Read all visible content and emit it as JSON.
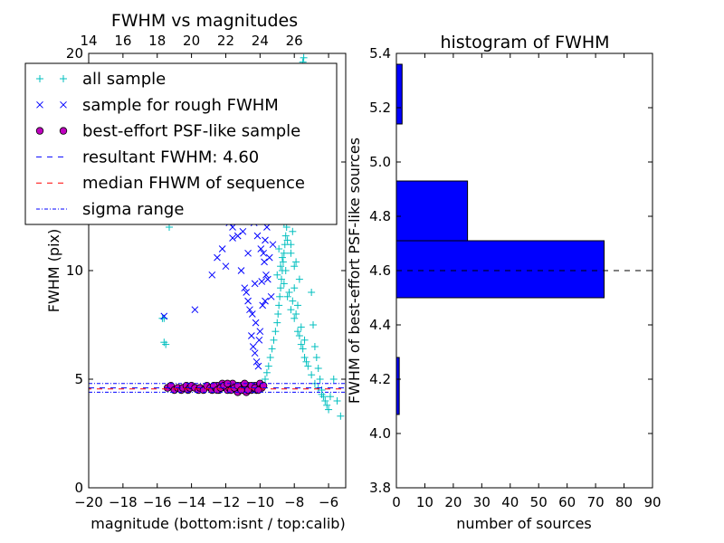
{
  "chart_data": [
    {
      "type": "scatter",
      "title": "FWHM vs magnitudes",
      "xlabel": "magnitude (bottom:isnt / top:calib)",
      "ylabel": "FWHM (pix)",
      "xlim": [
        -20,
        -5
      ],
      "ylim": [
        0,
        20
      ],
      "x_ticks": [
        -20,
        -18,
        -16,
        -14,
        -12,
        -10,
        -8,
        -6
      ],
      "x_tick_labels": [
        "−20",
        "−18",
        "−16",
        "−14",
        "−12",
        "−10",
        "−8",
        "−6"
      ],
      "y_ticks": [
        0,
        5,
        10,
        15,
        20
      ],
      "y_tick_labels": [
        "0",
        "5",
        "10",
        "15",
        "20"
      ],
      "top_axis": {
        "ticks": [
          14,
          16,
          18,
          20,
          22,
          24,
          26
        ],
        "tick_labels": [
          "14",
          "16",
          "18",
          "20",
          "22",
          "24",
          "26"
        ],
        "offset": 34
      },
      "legend": {
        "placement": "top-left",
        "entries": [
          {
            "label": "all sample",
            "marker": "plus",
            "color": "#00bfbf"
          },
          {
            "label": "sample for rough FWHM",
            "marker": "x",
            "color": "#0000ff"
          },
          {
            "label": "best-effort PSF-like sample",
            "marker": "circle",
            "color": "#bf00bf"
          },
          {
            "label": "resultant FWHM: 4.60",
            "marker": "dashed",
            "color": "#0000ff"
          },
          {
            "label": "median FHWM of sequence",
            "marker": "dashed",
            "color": "#ff0000"
          },
          {
            "label": "sigma range",
            "marker": "dashdot",
            "color": "#0000ff"
          }
        ]
      },
      "lines": {
        "resultant_fwhm": 4.6,
        "median_fwhm": 4.55,
        "sigma_range": [
          4.4,
          4.8
        ]
      },
      "series": [
        {
          "name": "all sample",
          "marker": "plus",
          "color": "#00bfbf",
          "x": [
            -15.7,
            -15.6,
            -15.6,
            -15.5,
            -15.3,
            -15.1,
            -14.4,
            -12.6,
            -10.3,
            -10.1,
            -9.9,
            -9.7,
            -9.6,
            -9.5,
            -9.4,
            -9.3,
            -9.2,
            -9.1,
            -9.0,
            -8.95,
            -8.9,
            -8.85,
            -8.8,
            -8.75,
            -8.7,
            -8.65,
            -8.6,
            -8.55,
            -8.5,
            -8.45,
            -8.4,
            -8.35,
            -8.3,
            -8.25,
            -8.2,
            -8.15,
            -8.1,
            -8.05,
            -8.0,
            -7.95,
            -7.9,
            -7.85,
            -7.8,
            -7.75,
            -7.7,
            -7.65,
            -7.6,
            -7.55,
            -7.5,
            -7.45,
            -7.4,
            -7.35,
            -7.3,
            -7.25,
            -7.2,
            -7.1,
            -7.0,
            -6.9,
            -6.8,
            -6.7,
            -6.6,
            -6.5,
            -6.4,
            -6.3,
            -6.2,
            -6.1,
            -6.0,
            -5.9,
            -5.7,
            -5.5,
            -5.3,
            -9.0,
            -8.8,
            -8.6,
            -8.4,
            -8.2,
            -8.0,
            -7.8,
            -7.6,
            -7.4,
            -7.2,
            -7.0,
            -8.9,
            -8.7,
            -8.5,
            -8.3,
            -8.1,
            -7.9,
            -7.7,
            -7.5,
            -7.3,
            -6.8,
            -6.6,
            -6.4,
            -8.6,
            -8.4,
            -8.2,
            -8.0,
            -7.8,
            -7.6,
            -7.4,
            -8.5,
            -8.3,
            -8.1,
            -7.9,
            -7.7,
            -8.8,
            -8.6,
            -8.4,
            -8.2,
            -8.0,
            -8.7,
            -8.5,
            -8.3,
            -8.1
          ],
          "y": [
            7.8,
            6.7,
            7.8,
            6.6,
            12.0,
            15.8,
            16.2,
            14.6,
            15.0,
            13.0,
            4.8,
            5.0,
            5.3,
            5.6,
            6.0,
            6.4,
            6.8,
            7.2,
            7.6,
            8.0,
            8.4,
            8.8,
            9.2,
            9.6,
            10.0,
            10.4,
            10.8,
            11.2,
            11.6,
            12.0,
            12.4,
            12.8,
            13.2,
            13.6,
            14.0,
            14.4,
            14.8,
            15.2,
            15.6,
            16.0,
            16.4,
            16.8,
            17.2,
            17.6,
            18.0,
            18.4,
            18.8,
            19.2,
            19.6,
            19.8,
            19.4,
            19.0,
            18.2,
            17.0,
            16.0,
            12.5,
            9.0,
            7.5,
            6.5,
            6.0,
            5.5,
            5.0,
            4.5,
            4.2,
            4.0,
            3.8,
            3.6,
            4.2,
            5.0,
            4.0,
            3.3,
            9.8,
            10.2,
            9.4,
            8.8,
            8.2,
            7.8,
            7.2,
            6.6,
            6.0,
            5.6,
            5.2,
            11.0,
            10.6,
            10.0,
            9.0,
            8.6,
            8.0,
            7.0,
            6.4,
            5.8,
            4.8,
            4.6,
            4.3,
            12.2,
            11.4,
            10.8,
            9.2,
            8.4,
            7.4,
            6.8,
            13.0,
            12.6,
            11.8,
            10.4,
            9.6,
            14.2,
            13.4,
            12.8,
            11.2,
            10.2,
            15.0,
            14.4,
            13.8,
            12.4
          ]
        },
        {
          "name": "sample for rough FWHM",
          "marker": "x",
          "color": "#0000ff",
          "x": [
            -15.6,
            -13.8,
            -12.8,
            -12.5,
            -12.2,
            -12.0,
            -11.8,
            -11.6,
            -11.4,
            -11.2,
            -11.0,
            -10.8,
            -10.6,
            -10.5,
            -10.4,
            -10.3,
            -10.2,
            -10.1,
            -10.0,
            -9.9,
            -9.8,
            -9.7,
            -9.6,
            -9.5,
            -9.4,
            -9.3,
            -9.2,
            -9.1,
            -11.1,
            -10.9,
            -10.7,
            -10.45,
            -10.25,
            -10.05,
            -9.85,
            -9.65,
            -9.45,
            -9.25,
            -10.9,
            -10.6,
            -10.35,
            -10.15,
            -9.95,
            -9.75,
            -9.55,
            -9.35,
            -10.8,
            -10.5,
            -10.2,
            -9.9,
            -9.6,
            -10.4,
            -10.1,
            -9.8,
            -9.5,
            -11.6,
            -11.3,
            -10.7,
            -10.3,
            -9.7
          ],
          "y": [
            7.9,
            8.2,
            9.8,
            10.6,
            11.0,
            10.2,
            12.2,
            11.5,
            12.6,
            13.0,
            11.8,
            9.0,
            8.2,
            7.0,
            6.5,
            6.2,
            5.8,
            5.6,
            7.2,
            9.5,
            10.8,
            11.4,
            12.0,
            12.5,
            13.2,
            14.0,
            14.8,
            15.6,
            10.0,
            9.2,
            8.6,
            8.0,
            7.6,
            6.8,
            8.4,
            9.8,
            10.6,
            11.2,
            13.4,
            12.8,
            12.2,
            11.6,
            11.0,
            10.4,
            9.6,
            8.8,
            14.2,
            13.8,
            13.4,
            12.9,
            12.4,
            15.0,
            14.6,
            14.0,
            13.6,
            12.0,
            11.6,
            10.8,
            9.4,
            8.6
          ]
        },
        {
          "name": "best-effort PSF-like sample",
          "marker": "circle",
          "color": "#bf00bf",
          "x": [
            -15.4,
            -15.2,
            -15.0,
            -14.8,
            -14.6,
            -14.5,
            -14.3,
            -14.2,
            -14.1,
            -14.0,
            -13.8,
            -13.6,
            -13.5,
            -13.3,
            -13.1,
            -12.9,
            -12.8,
            -12.6,
            -12.5,
            -12.4,
            -12.3,
            -12.2,
            -12.1,
            -12.0,
            -11.9,
            -11.8,
            -11.7,
            -11.6,
            -11.5,
            -11.4,
            -11.3,
            -11.2,
            -11.1,
            -11.0,
            -10.9,
            -10.8,
            -10.7,
            -10.6,
            -10.5,
            -10.4,
            -10.3,
            -10.2,
            -10.1,
            -10.0,
            -9.9,
            -9.8,
            -12.7,
            -12.5,
            -12.3,
            -12.1,
            -11.9,
            -11.7,
            -11.5,
            -11.3,
            -11.1,
            -10.9,
            -10.7,
            -10.5,
            -10.3,
            -10.1
          ],
          "y": [
            4.6,
            4.7,
            4.5,
            4.6,
            4.5,
            4.6,
            4.7,
            4.5,
            4.6,
            4.7,
            4.6,
            4.5,
            4.6,
            4.5,
            4.7,
            4.6,
            4.5,
            4.6,
            4.7,
            4.5,
            4.6,
            4.8,
            4.7,
            4.6,
            4.5,
            4.6,
            4.7,
            4.8,
            4.6,
            4.5,
            4.4,
            4.6,
            4.7,
            4.5,
            4.6,
            4.4,
            4.7,
            4.6,
            4.5,
            4.6,
            4.7,
            4.5,
            4.6,
            4.8,
            4.6,
            4.7,
            4.7,
            4.5,
            4.6,
            4.7,
            4.8,
            4.5,
            4.6,
            4.7,
            4.5,
            4.8,
            4.5,
            4.7,
            4.6,
            4.5
          ]
        }
      ]
    },
    {
      "type": "bar",
      "orientation": "horizontal",
      "title": "histogram of FWHM",
      "xlabel": "number of sources",
      "ylabel": "FWHM of best-effort PSF-like sources",
      "xlim": [
        0,
        90
      ],
      "ylim": [
        3.8,
        5.4
      ],
      "x_ticks": [
        0,
        10,
        20,
        30,
        40,
        50,
        60,
        70,
        80,
        90
      ],
      "x_tick_labels": [
        "0",
        "10",
        "20",
        "30",
        "40",
        "50",
        "60",
        "70",
        "80",
        "90"
      ],
      "y_ticks": [
        3.8,
        4.0,
        4.2,
        4.4,
        4.6,
        4.8,
        5.0,
        5.2,
        5.4
      ],
      "y_tick_labels": [
        "3.8",
        "4.0",
        "4.2",
        "4.4",
        "4.6",
        "4.8",
        "5.0",
        "5.2",
        "5.4"
      ],
      "bar_color": "#0000ff",
      "bins": [
        {
          "from": 4.07,
          "to": 4.28,
          "count": 1
        },
        {
          "from": 4.5,
          "to": 4.71,
          "count": 73
        },
        {
          "from": 4.71,
          "to": 4.93,
          "count": 25
        },
        {
          "from": 5.14,
          "to": 5.36,
          "count": 2
        }
      ],
      "reference_line": 4.6
    }
  ]
}
